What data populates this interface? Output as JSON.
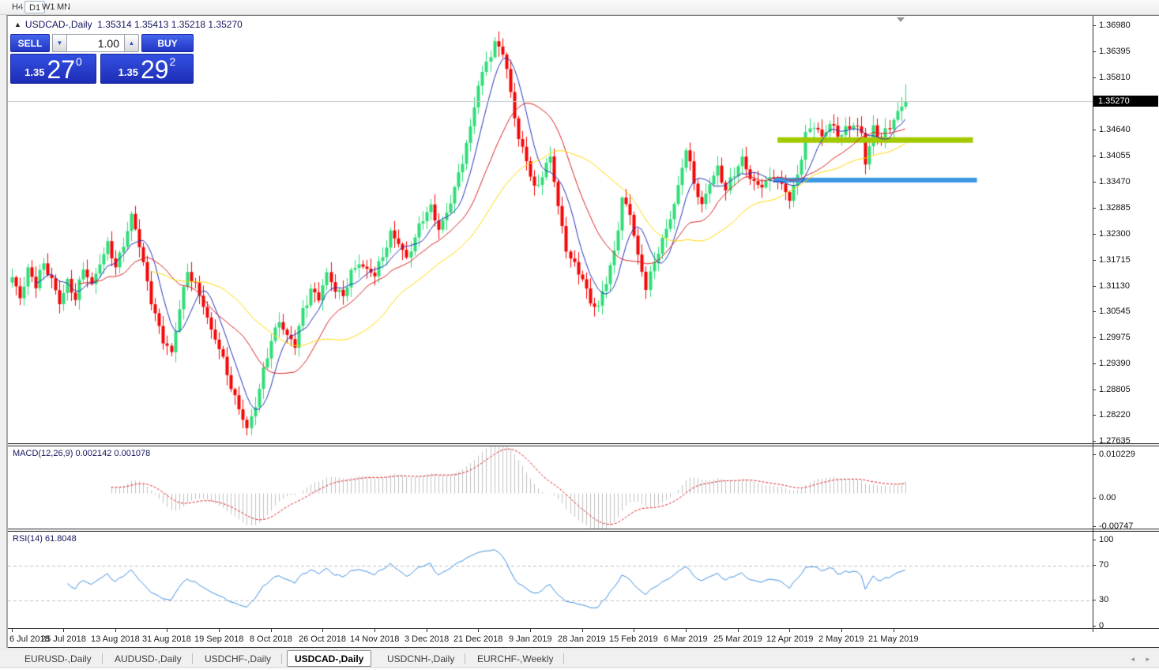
{
  "toolbar": {
    "timeframes": [
      "H4",
      "D1",
      "W1",
      "MN"
    ],
    "active": "D1"
  },
  "legend": {
    "symbol": "USDCAD-,Daily",
    "ohlc": "1.35314 1.35413 1.35218 1.35270"
  },
  "trade_widget": {
    "sell_label": "SELL",
    "buy_label": "BUY",
    "volume": "1.00",
    "sell_price": {
      "small": "1.35",
      "big": "27",
      "sup": "0"
    },
    "buy_price": {
      "small": "1.35",
      "big": "29",
      "sup": "2"
    }
  },
  "indicators": {
    "macd_label": "MACD(12,26,9) 0.002142 0.001078",
    "rsi_label": "RSI(14) 61.8048"
  },
  "price_axis": {
    "current": "1.35270",
    "ticks": [
      "1.36980",
      "1.36395",
      "1.35810",
      "1.34640",
      "1.34055",
      "1.33470",
      "1.32885",
      "1.32300",
      "1.31715",
      "1.31130",
      "1.30545",
      "1.29975",
      "1.29390",
      "1.28805",
      "1.28220",
      "1.27635"
    ]
  },
  "macd_axis": {
    "ticks": [
      "0.010229",
      "0.00",
      "-0.00747"
    ]
  },
  "rsi_axis": {
    "ticks": [
      "100",
      "70",
      "30",
      "0"
    ]
  },
  "time_axis": {
    "labels": [
      "6 Jul 2018",
      "25 Jul 2018",
      "13 Aug 2018",
      "31 Aug 2018",
      "19 Sep 2018",
      "8 Oct 2018",
      "26 Oct 2018",
      "14 Nov 2018",
      "3 Dec 2018",
      "21 Dec 2018",
      "9 Jan 2019",
      "28 Jan 2019",
      "15 Feb 2019",
      "6 Mar 2019",
      "25 Mar 2019",
      "12 Apr 2019",
      "2 May 2019",
      "21 May 2019"
    ],
    "bars_per_label": 13
  },
  "tabs": {
    "items": [
      "EURUSD-,Daily",
      "AUDUSD-,Daily",
      "USDCHF-,Daily",
      "USDCAD-,Daily",
      "USDCNH-,Daily",
      "EURCHF-,Weekly"
    ],
    "active": "USDCAD-,Daily",
    "scroll_arrows": "◂ ▸"
  },
  "chart_data": {
    "type": "candlestick",
    "symbol": "USDCAD",
    "timeframe": "Daily",
    "bars": 225,
    "y_range": [
      1.2759,
      1.3719
    ],
    "price_anchors": [
      [
        0,
        1.3125
      ],
      [
        2,
        1.309
      ],
      [
        4,
        1.315
      ],
      [
        6,
        1.311
      ],
      [
        8,
        1.3165
      ],
      [
        10,
        1.313
      ],
      [
        12,
        1.307
      ],
      [
        14,
        1.312
      ],
      [
        16,
        1.309
      ],
      [
        18,
        1.315
      ],
      [
        20,
        1.311
      ],
      [
        22,
        1.317
      ],
      [
        24,
        1.3205
      ],
      [
        26,
        1.315
      ],
      [
        28,
        1.321
      ],
      [
        30,
        1.3272
      ],
      [
        32,
        1.32
      ],
      [
        34,
        1.312
      ],
      [
        36,
        1.305
      ],
      [
        38,
        1.2985
      ],
      [
        40,
        1.296
      ],
      [
        42,
        1.307
      ],
      [
        44,
        1.314
      ],
      [
        46,
        1.311
      ],
      [
        48,
        1.3075
      ],
      [
        50,
        1.301
      ],
      [
        52,
        1.297
      ],
      [
        54,
        1.292
      ],
      [
        56,
        1.286
      ],
      [
        58,
        1.281
      ],
      [
        59,
        1.2788
      ],
      [
        61,
        1.285
      ],
      [
        63,
        1.292
      ],
      [
        65,
        1.2985
      ],
      [
        67,
        1.304
      ],
      [
        69,
        1.3
      ],
      [
        71,
        1.2975
      ],
      [
        73,
        1.306
      ],
      [
        75,
        1.3105
      ],
      [
        77,
        1.308
      ],
      [
        79,
        1.314
      ],
      [
        81,
        1.311
      ],
      [
        83,
        1.3085
      ],
      [
        85,
        1.314
      ],
      [
        87,
        1.317
      ],
      [
        89,
        1.3145
      ],
      [
        91,
        1.3135
      ],
      [
        93,
        1.3185
      ],
      [
        95,
        1.323
      ],
      [
        97,
        1.3205
      ],
      [
        99,
        1.3175
      ],
      [
        101,
        1.3225
      ],
      [
        103,
        1.326
      ],
      [
        105,
        1.329
      ],
      [
        107,
        1.3245
      ],
      [
        109,
        1.327
      ],
      [
        111,
        1.333
      ],
      [
        113,
        1.34
      ],
      [
        115,
        1.3465
      ],
      [
        117,
        1.356
      ],
      [
        119,
        1.362
      ],
      [
        121,
        1.3655
      ],
      [
        123,
        1.3635
      ],
      [
        125,
        1.355
      ],
      [
        127,
        1.3445
      ],
      [
        129,
        1.339
      ],
      [
        131,
        1.333
      ],
      [
        133,
        1.3365
      ],
      [
        135,
        1.34
      ],
      [
        137,
        1.329
      ],
      [
        139,
        1.32
      ],
      [
        141,
        1.3155
      ],
      [
        143,
        1.3125
      ],
      [
        145,
        1.308
      ],
      [
        147,
        1.3065
      ],
      [
        149,
        1.312
      ],
      [
        151,
        1.319
      ],
      [
        153,
        1.331
      ],
      [
        155,
        1.327
      ],
      [
        157,
        1.318
      ],
      [
        159,
        1.3115
      ],
      [
        161,
        1.316
      ],
      [
        163,
        1.3215
      ],
      [
        165,
        1.327
      ],
      [
        167,
        1.333
      ],
      [
        169,
        1.342
      ],
      [
        171,
        1.335
      ],
      [
        173,
        1.329
      ],
      [
        175,
        1.334
      ],
      [
        177,
        1.338
      ],
      [
        179,
        1.333
      ],
      [
        181,
        1.336
      ],
      [
        183,
        1.34
      ],
      [
        185,
        1.336
      ],
      [
        187,
        1.333
      ],
      [
        189,
        1.3345
      ],
      [
        191,
        1.3365
      ],
      [
        193,
        1.3335
      ],
      [
        195,
        1.3305
      ],
      [
        197,
        1.3365
      ],
      [
        199,
        1.345
      ],
      [
        201,
        1.347
      ],
      [
        203,
        1.345
      ],
      [
        205,
        1.348
      ],
      [
        207,
        1.3445
      ],
      [
        209,
        1.3465
      ],
      [
        211,
        1.348
      ],
      [
        213,
        1.345
      ],
      [
        214,
        1.3385
      ],
      [
        216,
        1.347
      ],
      [
        218,
        1.3445
      ],
      [
        220,
        1.3465
      ],
      [
        222,
        1.3505
      ],
      [
        224,
        1.3527
      ]
    ],
    "levels": {
      "current_price": 1.3527,
      "resistance": {
        "price": 1.344,
        "color": "#a2c800",
        "from_bar": 192,
        "to_bar": 241
      },
      "support": {
        "price": 1.335,
        "color": "#3b97e3",
        "from_bar": 191,
        "to_bar": 242
      }
    },
    "moving_averages": [
      {
        "period": 7,
        "color": "#2433bb"
      },
      {
        "period": 18,
        "color": "#d92222"
      },
      {
        "period": 36,
        "color": "#ffd800"
      }
    ],
    "macd": {
      "fast": 12,
      "slow": 26,
      "signal": 9,
      "value": 0.002142,
      "signal_value": 0.001078,
      "hist_color": "#c0c0c0",
      "signal_color": "#dd2020",
      "ylim": [
        -0.00747,
        0.010229
      ]
    },
    "rsi": {
      "period": 14,
      "value": 61.8048,
      "color": "#3f8ede",
      "levels": [
        70,
        30
      ],
      "ylim": [
        0,
        100
      ]
    },
    "colors": {
      "bull": "#2fdd78",
      "bear": "#f40606",
      "current_line": "#c4c4c4",
      "background": "#ffffff"
    }
  }
}
